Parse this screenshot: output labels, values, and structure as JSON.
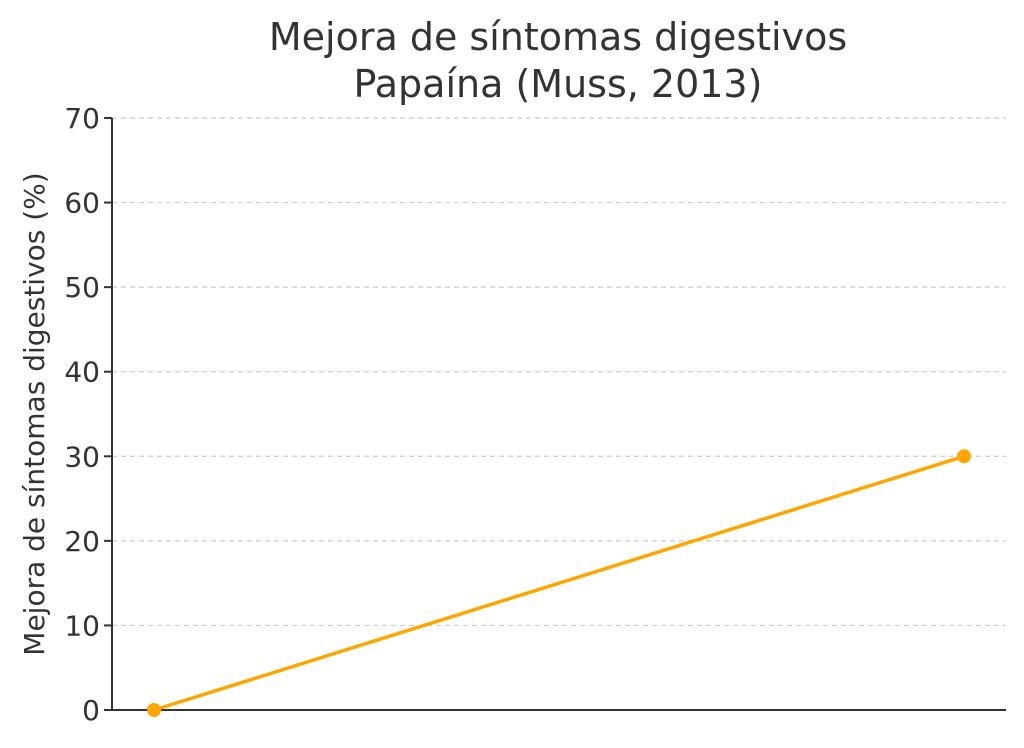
{
  "chart_data": {
    "type": "line",
    "title_lines": [
      "Mejora de síntomas digestivos",
      "Papaína (Muss, 2013)"
    ],
    "xlabel": "",
    "ylabel": "Mejora de síntomas digestivos (%)",
    "ylim": [
      0,
      70
    ],
    "yticks": [
      "0",
      "10",
      "20",
      "30",
      "40",
      "50",
      "60",
      "70"
    ],
    "x": [
      0,
      1
    ],
    "series": [
      {
        "values": [
          0,
          30
        ],
        "color": "#FFA500"
      }
    ],
    "grid": "horizontal-dashed",
    "colors": {
      "line": "#FFA500",
      "grid": "#cccccc",
      "axis": "#333333",
      "text": "#333333"
    }
  }
}
